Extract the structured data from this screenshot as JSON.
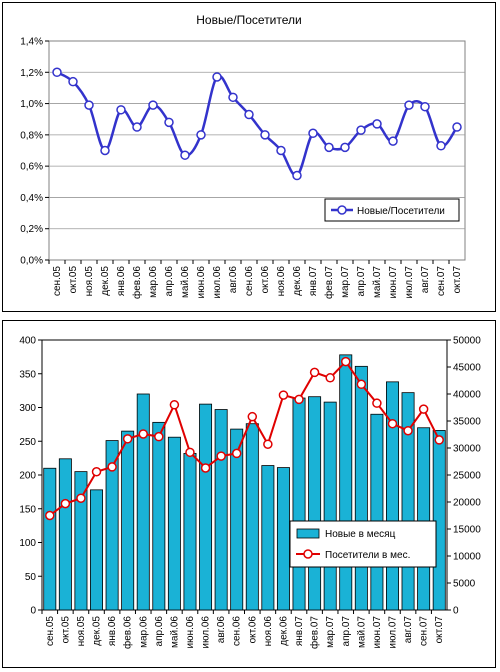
{
  "chart_data": [
    {
      "type": "line",
      "title": "Новые/Посетители",
      "xlabel": "",
      "ylabel": "",
      "categories": [
        "сен.05",
        "окт.05",
        "ноя.05",
        "дек.05",
        "янв.06",
        "фев.06",
        "мар.06",
        "апр.06",
        "май.06",
        "июн.06",
        "июл.06",
        "авг.06",
        "сен.06",
        "окт.06",
        "ноя.06",
        "дек.06",
        "янв.07",
        "фев.07",
        "мар.07",
        "апр.07",
        "май.07",
        "июн.07",
        "июл.07",
        "авг.07",
        "сен.07",
        "окт.07"
      ],
      "series": [
        {
          "name": "Новые/Посетители",
          "values": [
            1.2,
            1.14,
            0.99,
            0.7,
            0.96,
            0.85,
            0.99,
            0.88,
            0.67,
            0.8,
            1.17,
            1.04,
            0.93,
            0.8,
            0.7,
            0.54,
            0.81,
            0.72,
            0.72,
            0.83,
            0.87,
            0.76,
            0.99,
            0.98,
            0.73,
            0.85
          ]
        }
      ],
      "ylim": [
        0,
        1.4
      ],
      "yticks": [
        "0,0%",
        "0,2%",
        "0,4%",
        "0,6%",
        "0,8%",
        "1,0%",
        "1,2%",
        "1,4%"
      ],
      "grid": true,
      "legend_position": "right-middle",
      "line_color": "#3333cc"
    },
    {
      "type": "bar",
      "title": "",
      "xlabel": "",
      "ylabel": "",
      "categories": [
        "сен.05",
        "окт.05",
        "ноя.05",
        "дек.05",
        "янв.06",
        "фев.06",
        "мар.06",
        "апр.06",
        "май.06",
        "июн.06",
        "июл.06",
        "авг.06",
        "сен.06",
        "окт.06",
        "ноя.06",
        "дек.06",
        "янв.07",
        "фев.07",
        "мар.07",
        "апр.07",
        "май.07",
        "июн.07",
        "июл.07",
        "авг.07",
        "сен.07",
        "окт.07"
      ],
      "series": [
        {
          "name": "Новые в месяц",
          "axis": "left",
          "kind": "bar",
          "values": [
            210,
            224,
            205,
            178,
            251,
            265,
            320,
            278,
            256,
            232,
            305,
            297,
            268,
            276,
            214,
            211,
            314,
            316,
            308,
            378,
            361,
            290,
            338,
            322,
            270,
            266
          ]
        },
        {
          "name": "Посетители в мес.",
          "axis": "right",
          "kind": "line",
          "values": [
            17500,
            19700,
            20700,
            25600,
            26500,
            31700,
            32600,
            32100,
            38000,
            29200,
            26300,
            28500,
            29000,
            35800,
            30700,
            39800,
            39000,
            44000,
            43000,
            46000,
            41800,
            38300,
            34500,
            33200,
            37200,
            31500
          ]
        }
      ],
      "ylim": [
        0,
        400
      ],
      "y2lim": [
        0,
        50000
      ],
      "yticks": [
        "0",
        "50",
        "100",
        "150",
        "200",
        "250",
        "300",
        "350",
        "400"
      ],
      "y2ticks": [
        "0",
        "5000",
        "10000",
        "15000",
        "20000",
        "25000",
        "30000",
        "35000",
        "40000",
        "45000",
        "50000"
      ],
      "grid": false,
      "legend_position": "right-lower",
      "bar_color": "#1ab2d6",
      "line_color": "#e00000"
    }
  ]
}
